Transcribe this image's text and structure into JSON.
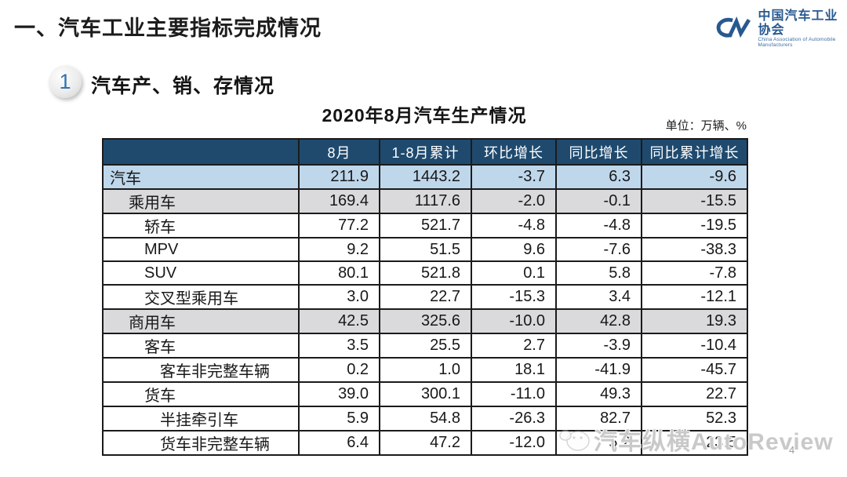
{
  "page": {
    "title": "一、汽车工业主要指标完成情况",
    "section_badge": "1",
    "section_title": "汽车产、销、存情况",
    "page_number": "4"
  },
  "logo": {
    "name_cn": "中国汽车工业协会",
    "name_en": "China Association of Automobile Manufacturers",
    "brand_color": "#27598f"
  },
  "table": {
    "title": "2020年8月汽车生产情况",
    "unit_label": "单位：万辆、%",
    "header_bg_color": "#1f4a6e",
    "highlight_blue_color": "#bfd7eb",
    "highlight_gray_color": "#dadadd",
    "columns": [
      "",
      "8月",
      "1-8月累计",
      "环比增长",
      "同比增长",
      "同比累计增长"
    ],
    "rows": [
      {
        "label": "汽车",
        "indent": 0,
        "highlight": "blue",
        "values": [
          "211.9",
          "1443.2",
          "-3.7",
          "6.3",
          "-9.6"
        ]
      },
      {
        "label": "乘用车",
        "indent": 1,
        "highlight": "gray",
        "values": [
          "169.4",
          "1117.6",
          "-2.0",
          "-0.1",
          "-15.5"
        ]
      },
      {
        "label": "轿车",
        "indent": 2,
        "highlight": "none",
        "values": [
          "77.2",
          "521.7",
          "-4.8",
          "-4.8",
          "-19.5"
        ]
      },
      {
        "label": "MPV",
        "indent": 2,
        "highlight": "none",
        "values": [
          "9.2",
          "51.5",
          "9.6",
          "-7.6",
          "-38.3"
        ]
      },
      {
        "label": "SUV",
        "indent": 2,
        "highlight": "none",
        "values": [
          "80.1",
          "521.8",
          "0.1",
          "5.8",
          "-7.8"
        ]
      },
      {
        "label": "交叉型乘用车",
        "indent": 2,
        "highlight": "none",
        "values": [
          "3.0",
          "22.7",
          "-15.3",
          "3.4",
          "-12.1"
        ]
      },
      {
        "label": "商用车",
        "indent": 1,
        "highlight": "gray",
        "values": [
          "42.5",
          "325.6",
          "-10.0",
          "42.8",
          "19.3"
        ]
      },
      {
        "label": "客车",
        "indent": 2,
        "highlight": "none",
        "values": [
          "3.5",
          "25.5",
          "2.7",
          "-3.9",
          "-10.4"
        ]
      },
      {
        "label": "客车非完整车辆",
        "indent": 3,
        "highlight": "none",
        "values": [
          "0.2",
          "1.0",
          "18.1",
          "-41.9",
          "-45.7"
        ]
      },
      {
        "label": "货车",
        "indent": 2,
        "highlight": "none",
        "values": [
          "39.0",
          "300.1",
          "-11.0",
          "49.3",
          "22.7"
        ]
      },
      {
        "label": "半挂牵引车",
        "indent": 3,
        "highlight": "none",
        "values": [
          "5.9",
          "54.8",
          "-26.3",
          "82.7",
          "52.3"
        ]
      },
      {
        "label": "货车非完整车辆",
        "indent": 3,
        "highlight": "none",
        "values": [
          "6.4",
          "47.2",
          "-12.0",
          "5.2",
          "23.5"
        ]
      }
    ]
  },
  "watermark": {
    "text": "汽车纵横AutoReview"
  },
  "chart_data": {
    "type": "table",
    "title": "2020年8月汽车生产情况",
    "unit": "万辆、%",
    "columns": [
      "8月",
      "1-8月累计",
      "环比增长",
      "同比增长",
      "同比累计增长"
    ],
    "categories": [
      "汽车",
      "乘用车",
      "轿车",
      "MPV",
      "SUV",
      "交叉型乘用车",
      "商用车",
      "客车",
      "客车非完整车辆",
      "货车",
      "半挂牵引车",
      "货车非完整车辆"
    ],
    "series": [
      {
        "name": "8月",
        "values": [
          211.9,
          169.4,
          77.2,
          9.2,
          80.1,
          3.0,
          42.5,
          3.5,
          0.2,
          39.0,
          5.9,
          6.4
        ]
      },
      {
        "name": "1-8月累计",
        "values": [
          1443.2,
          1117.6,
          521.7,
          51.5,
          521.8,
          22.7,
          325.6,
          25.5,
          1.0,
          300.1,
          54.8,
          47.2
        ]
      },
      {
        "name": "环比增长",
        "values": [
          -3.7,
          -2.0,
          -4.8,
          9.6,
          0.1,
          -15.3,
          -10.0,
          2.7,
          18.1,
          -11.0,
          -26.3,
          -12.0
        ]
      },
      {
        "name": "同比增长",
        "values": [
          6.3,
          -0.1,
          -4.8,
          -7.6,
          5.8,
          3.4,
          42.8,
          -3.9,
          -41.9,
          49.3,
          82.7,
          5.2
        ]
      },
      {
        "name": "同比累计增长",
        "values": [
          -9.6,
          -15.5,
          -19.5,
          -38.3,
          -7.8,
          -12.1,
          19.3,
          -10.4,
          -45.7,
          22.7,
          52.3,
          23.5
        ]
      }
    ]
  }
}
